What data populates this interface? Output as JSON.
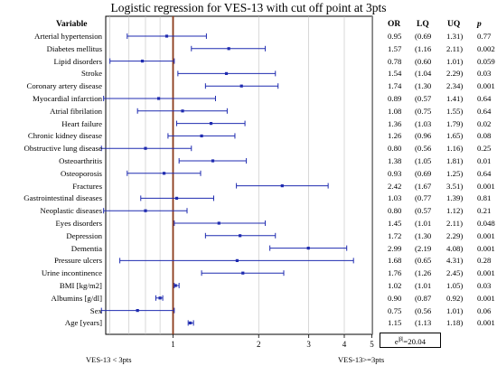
{
  "title": "Logistic regression for VES-13 with cut off point at 3pts",
  "headers": {
    "variable": "Variable",
    "or": "OR",
    "lq": "LQ",
    "uq": "UQ",
    "p": "p"
  },
  "chart_data": {
    "type": "forest",
    "x_scale": "log",
    "reference_line": 1,
    "x_ticks": [
      {
        "value": 1,
        "label": "1"
      },
      {
        "value": 2,
        "label": "2"
      },
      {
        "value": 3,
        "label": "3"
      },
      {
        "value": 4,
        "label": "4"
      },
      {
        "value": 5,
        "label": "5"
      }
    ],
    "rows": [
      {
        "label": "Arterial hypertension",
        "or": "0.95",
        "lq": "(0.69",
        "uq": "1.31)",
        "p": "0.77"
      },
      {
        "label": "Diabetes mellitus",
        "or": "1.57",
        "lq": "(1.16",
        "uq": "2.11)",
        "p": "0.002"
      },
      {
        "label": "Lipid disorders",
        "or": "0.78",
        "lq": "(0.60",
        "uq": "1.01)",
        "p": "0.059"
      },
      {
        "label": "Stroke",
        "or": "1.54",
        "lq": "(1.04",
        "uq": "2.29)",
        "p": "0.03"
      },
      {
        "label": "Coronary artery disease",
        "or": "1.74",
        "lq": "(1.30",
        "uq": "2.34)",
        "p": "0.001"
      },
      {
        "label": "Myocardial infarction",
        "or": "0.89",
        "lq": "(0.57",
        "uq": "1.41)",
        "p": "0.64"
      },
      {
        "label": "Atrial fibrilation",
        "or": "1.08",
        "lq": "(0.75",
        "uq": "1.55)",
        "p": "0.64"
      },
      {
        "label": "Heart failure",
        "or": "1.36",
        "lq": "(1.03",
        "uq": "1.79)",
        "p": "0.02"
      },
      {
        "label": "Chronic kidney disease",
        "or": "1.26",
        "lq": "(0.96",
        "uq": "1.65)",
        "p": "0.08"
      },
      {
        "label": "Obstructive lung  disease",
        "or": "0.80",
        "lq": "(0.56",
        "uq": "1.16)",
        "p": "0.25"
      },
      {
        "label": "Osteoarthritis",
        "or": "1.38",
        "lq": "(1.05",
        "uq": "1.81)",
        "p": "0.01"
      },
      {
        "label": "Osteoporosis",
        "or": "0.93",
        "lq": "(0.69",
        "uq": "1.25)",
        "p": "0.64"
      },
      {
        "label": "Fractures",
        "or": "2.42",
        "lq": "(1.67",
        "uq": "3.51)",
        "p": "0.001"
      },
      {
        "label": "Gastrointestinal diseases",
        "or": "1.03",
        "lq": "(0.77",
        "uq": "1.39)",
        "p": "0.81"
      },
      {
        "label": "Neoplastic diseases",
        "or": "0.80",
        "lq": "(0.57",
        "uq": "1.12)",
        "p": "0.21"
      },
      {
        "label": "Eyes disorders",
        "or": "1.45",
        "lq": "(1.01",
        "uq": "2.11)",
        "p": "0.048"
      },
      {
        "label": "Depression",
        "or": "1.72",
        "lq": "(1.30",
        "uq": "2.29)",
        "p": "0.001"
      },
      {
        "label": "Dementia",
        "or": "2.99",
        "lq": "(2.19",
        "uq": "4.08)",
        "p": "0.001"
      },
      {
        "label": "Pressure ulcers",
        "or": "1.68",
        "lq": "(0.65",
        "uq": "4.31)",
        "p": "0.28"
      },
      {
        "label": "Urine incontinence",
        "or": "1.76",
        "lq": "(1.26",
        "uq": "2.45)",
        "p": "0.001"
      },
      {
        "label": "BMI [kg/m2]",
        "or": "1.02",
        "lq": "(1.01",
        "uq": "1.05)",
        "p": "0.03"
      },
      {
        "label": "Albumins [g/dl]",
        "or": "0.90",
        "lq": "(0.87",
        "uq": "0.92)",
        "p": "0.001"
      },
      {
        "label": "Sex",
        "or": "0.75",
        "lq": "(0.56",
        "uq": "1.01)",
        "p": "0.06"
      },
      {
        "label": "Age [years]",
        "or": "1.15",
        "lq": "(1.13",
        "uq": "1.18)",
        "p": "0.001"
      }
    ]
  },
  "footer": {
    "left": "VES-13 < 3pts",
    "right": "VES-13>=3pts"
  },
  "box": {
    "base": "e",
    "sup": "|β|",
    "rest": "=20.04"
  },
  "colors": {
    "interval": "#1f2bb0",
    "point": "#1f2bb0",
    "reference": "#8b3a1a",
    "grid": "#bfbfbf"
  }
}
